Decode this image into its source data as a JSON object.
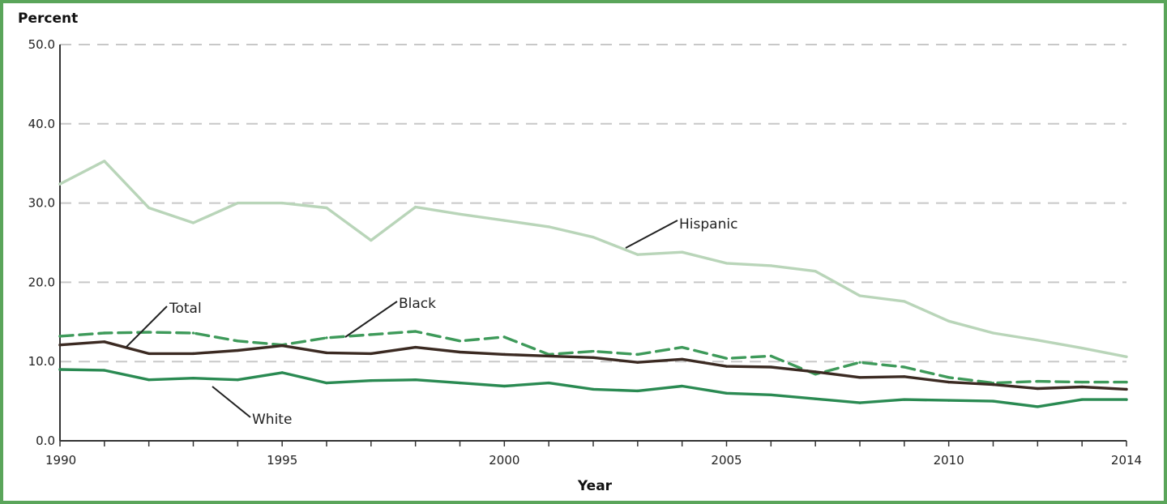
{
  "chart_data": {
    "type": "line",
    "ylabel": "Percent",
    "xlabel": "Year",
    "xlim": [
      1990,
      2014
    ],
    "ylim": [
      0,
      50
    ],
    "yticks": [
      "0.0",
      "10.0",
      "20.0",
      "30.0",
      "40.0",
      "50.0"
    ],
    "xticks": [
      "1990",
      "1995",
      "2000",
      "2005",
      "2010",
      "2014"
    ],
    "grid": true,
    "x": [
      1990,
      1991,
      1992,
      1993,
      1994,
      1995,
      1996,
      1997,
      1998,
      1999,
      2000,
      2001,
      2002,
      2003,
      2004,
      2005,
      2006,
      2007,
      2008,
      2009,
      2010,
      2011,
      2012,
      2013,
      2014
    ],
    "series": [
      {
        "name": "Hispanic",
        "color": "#b9d5b9",
        "dash": "solid",
        "values": [
          32.4,
          35.3,
          29.4,
          27.5,
          30.0,
          30.0,
          29.4,
          25.3,
          29.5,
          28.6,
          27.8,
          27.0,
          25.7,
          23.5,
          23.8,
          22.4,
          22.1,
          21.4,
          18.3,
          17.6,
          15.1,
          13.6,
          12.7,
          11.7,
          10.6
        ]
      },
      {
        "name": "Black",
        "color": "#3e9a5a",
        "dash": "dashed",
        "values": [
          13.2,
          13.6,
          13.7,
          13.6,
          12.6,
          12.1,
          13.0,
          13.4,
          13.8,
          12.6,
          13.1,
          10.9,
          11.3,
          10.9,
          11.8,
          10.4,
          10.7,
          8.4,
          9.9,
          9.3,
          8.0,
          7.3,
          7.5,
          7.4,
          7.4
        ]
      },
      {
        "name": "Total",
        "color": "#3b2a22",
        "dash": "solid",
        "values": [
          12.1,
          12.5,
          11.0,
          11.0,
          11.4,
          12.0,
          11.1,
          11.0,
          11.8,
          11.2,
          10.9,
          10.7,
          10.5,
          9.9,
          10.3,
          9.4,
          9.3,
          8.7,
          8.0,
          8.1,
          7.4,
          7.1,
          6.6,
          6.8,
          6.5
        ]
      },
      {
        "name": "White",
        "color": "#2a8a52",
        "dash": "solid",
        "values": [
          9.0,
          8.9,
          7.7,
          7.9,
          7.7,
          8.6,
          7.3,
          7.6,
          7.7,
          7.3,
          6.9,
          7.3,
          6.5,
          6.3,
          6.9,
          6.0,
          5.8,
          5.3,
          4.8,
          5.2,
          5.1,
          5.0,
          4.3,
          5.2,
          5.2
        ]
      }
    ],
    "annotations": [
      {
        "series": "Hispanic",
        "text": "Hispanic"
      },
      {
        "series": "Black",
        "text": "Black"
      },
      {
        "series": "Total",
        "text": "Total"
      },
      {
        "series": "White",
        "text": "White"
      }
    ]
  }
}
